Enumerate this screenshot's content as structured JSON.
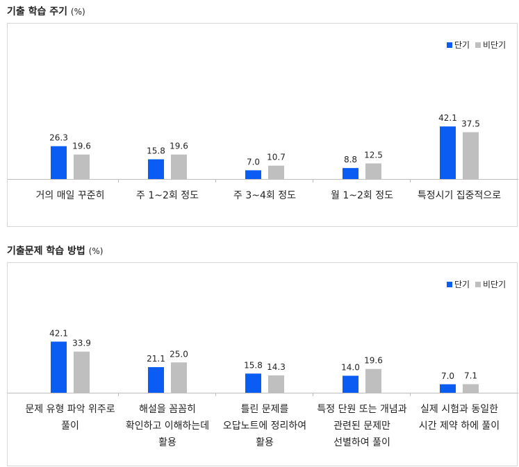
{
  "charts": [
    {
      "title": "기출 학습 주기",
      "unit": "(%)",
      "chart_data": {
        "type": "bar",
        "title": "기출 학습 주기 (%)",
        "categories": [
          [
            "거의 매일 꾸준히"
          ],
          [
            "주 1~2회 정도"
          ],
          [
            "주 3~4회 정도"
          ],
          [
            "월 1~2회 정도"
          ],
          [
            "특정시기 집중적으로"
          ]
        ],
        "series": [
          {
            "name": "단기",
            "color": "#0b5cf2",
            "values": [
              26.3,
              15.8,
              7.0,
              8.8,
              42.1
            ]
          },
          {
            "name": "비단기",
            "color": "#bfbfbf",
            "values": [
              19.6,
              19.6,
              10.7,
              12.5,
              37.5
            ]
          }
        ],
        "ylim": [
          0,
          50
        ],
        "legend": "top-right",
        "grid": false
      }
    },
    {
      "title": "기출문제 학습 방법",
      "unit": "(%)",
      "chart_data": {
        "type": "bar",
        "title": "기출문제 학습 방법 (%)",
        "categories": [
          [
            "문제 유형 파악 위주로",
            "풀이"
          ],
          [
            "해설을 꼼꼼히",
            "확인하고 이해하는데",
            "활용"
          ],
          [
            "틀린 문제를",
            "오답노트에 정리하여",
            "활용"
          ],
          [
            "특정 단원 또는 개념과",
            "관련된 문제만",
            "선별하여 풀이"
          ],
          [
            "실제 시험과 동일한",
            "시간 제약 하에 풀이"
          ]
        ],
        "series": [
          {
            "name": "단기",
            "color": "#0b5cf2",
            "values": [
              42.1,
              21.1,
              15.8,
              14.0,
              7.0
            ]
          },
          {
            "name": "비단기",
            "color": "#bfbfbf",
            "values": [
              33.9,
              25.0,
              14.3,
              19.6,
              7.1
            ]
          }
        ],
        "ylim": [
          0,
          50
        ],
        "legend": "top-right",
        "grid": false
      }
    }
  ]
}
